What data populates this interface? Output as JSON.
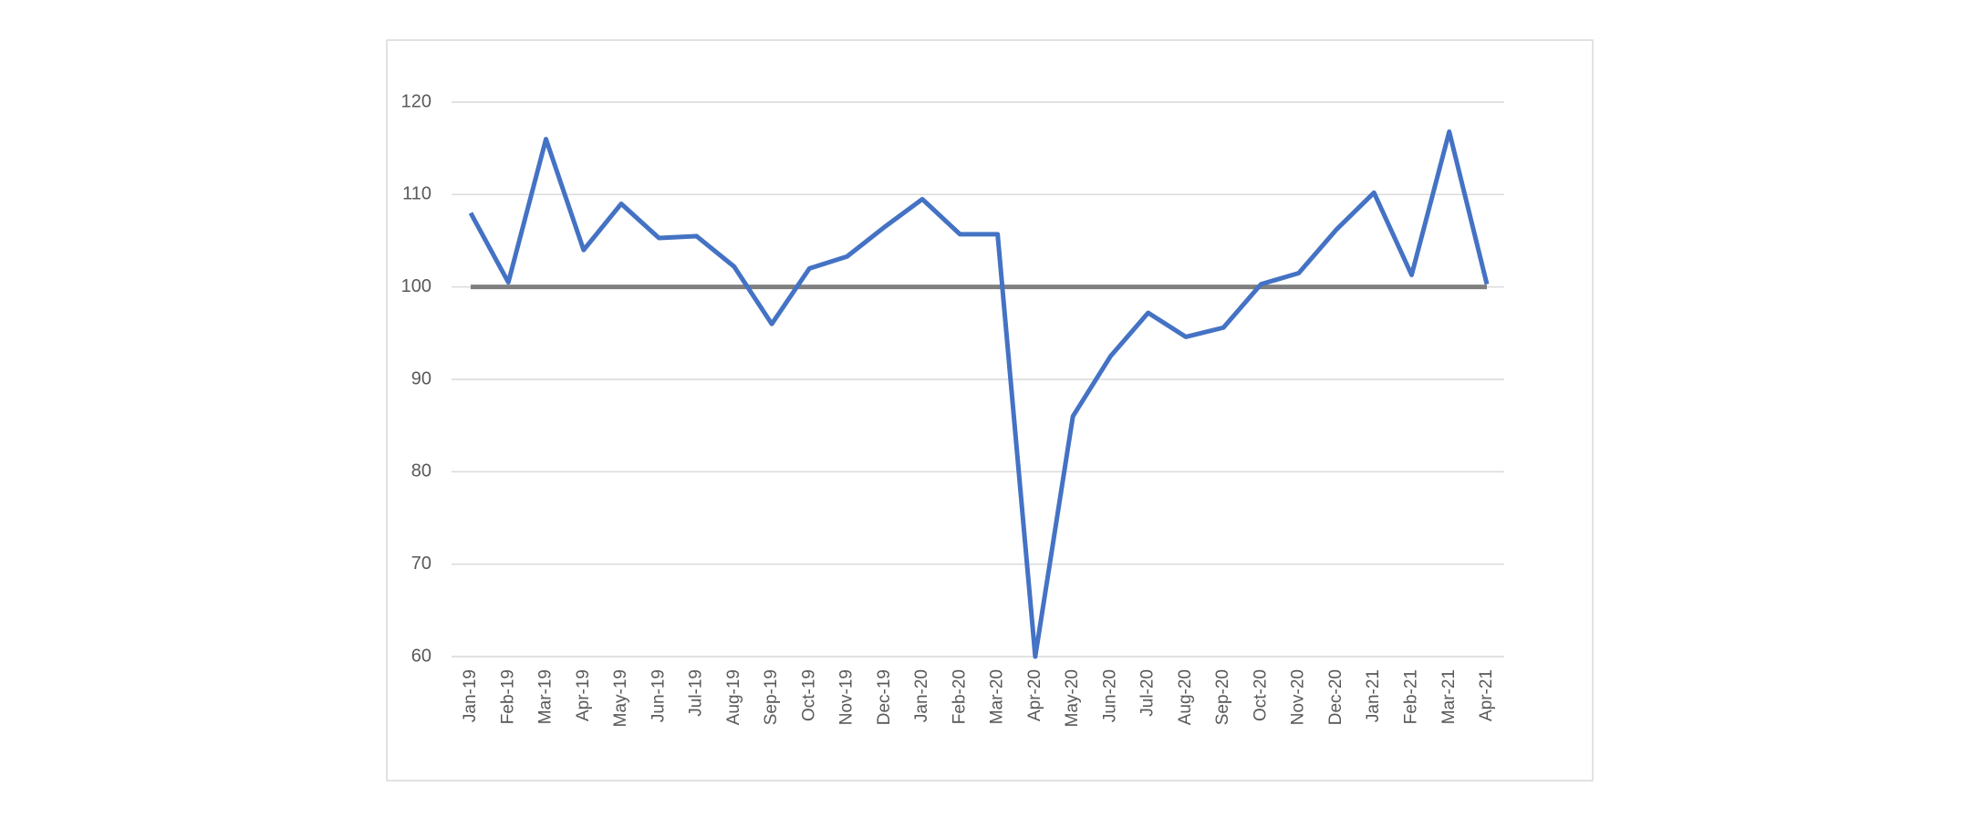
{
  "chart_data": {
    "type": "line",
    "categories": [
      "Jan-19",
      "Feb-19",
      "Mar-19",
      "Apr-19",
      "May-19",
      "Jun-19",
      "Jul-19",
      "Aug-19",
      "Sep-19",
      "Oct-19",
      "Nov-19",
      "Dec-19",
      "Jan-20",
      "Feb-20",
      "Mar-20",
      "Apr-20",
      "May-20",
      "Jun-20",
      "Jul-20",
      "Aug-20",
      "Sep-20",
      "Oct-20",
      "Nov-20",
      "Dec-20",
      "Jan-21",
      "Feb-21",
      "Mar-21",
      "Apr-21"
    ],
    "series": [
      {
        "color": "#4472c4",
        "values": [
          108,
          100.5,
          116,
          104,
          109,
          105.3,
          105.5,
          102.2,
          96,
          102,
          103.3,
          106.5,
          109.5,
          105.7,
          105.7,
          60,
          86,
          92.5,
          97.2,
          94.6,
          95.6,
          100.3,
          101.5,
          106.2,
          110.2,
          101.3,
          116.8,
          100.3
        ]
      },
      {
        "color": "#7f7f7f",
        "values": [
          100,
          100,
          100,
          100,
          100,
          100,
          100,
          100,
          100,
          100,
          100,
          100,
          100,
          100,
          100,
          100,
          100,
          100,
          100,
          100,
          100,
          100,
          100,
          100,
          100,
          100,
          100,
          100
        ]
      }
    ],
    "ylim": [
      60,
      120
    ],
    "yticks": [
      60,
      70,
      80,
      90,
      100,
      110,
      120
    ],
    "grid": true
  }
}
